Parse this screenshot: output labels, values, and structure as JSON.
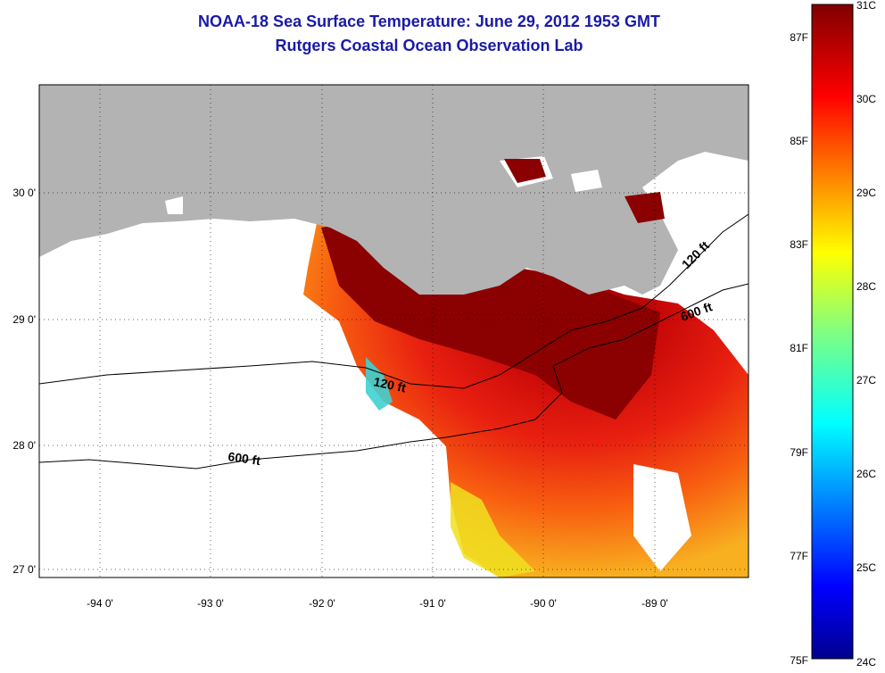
{
  "title": "NOAA-18 Sea Surface Temperature:  June 29, 2012 1953 GMT",
  "subtitle": "Rutgers Coastal Ocean Observation Lab",
  "axes": {
    "lon_ticks": [
      "-94 0'",
      "-93 0'",
      "-92 0'",
      "-91 0'",
      "-90 0'",
      "-89 0'"
    ],
    "lat_ticks": [
      "30 0'",
      "29 0'",
      "28 0'",
      "27 0'"
    ]
  },
  "isobaths": {
    "label_120": "120 ft",
    "label_600": "600 ft"
  },
  "colorbar": {
    "fahrenheit": [
      "87F",
      "85F",
      "83F",
      "81F",
      "79F",
      "77F",
      "75F"
    ],
    "celsius": [
      "31C",
      "30C",
      "29C",
      "28C",
      "27C",
      "26C",
      "25C",
      "24C"
    ],
    "colormap": "jet",
    "land_color": "#b3b3b3"
  }
}
